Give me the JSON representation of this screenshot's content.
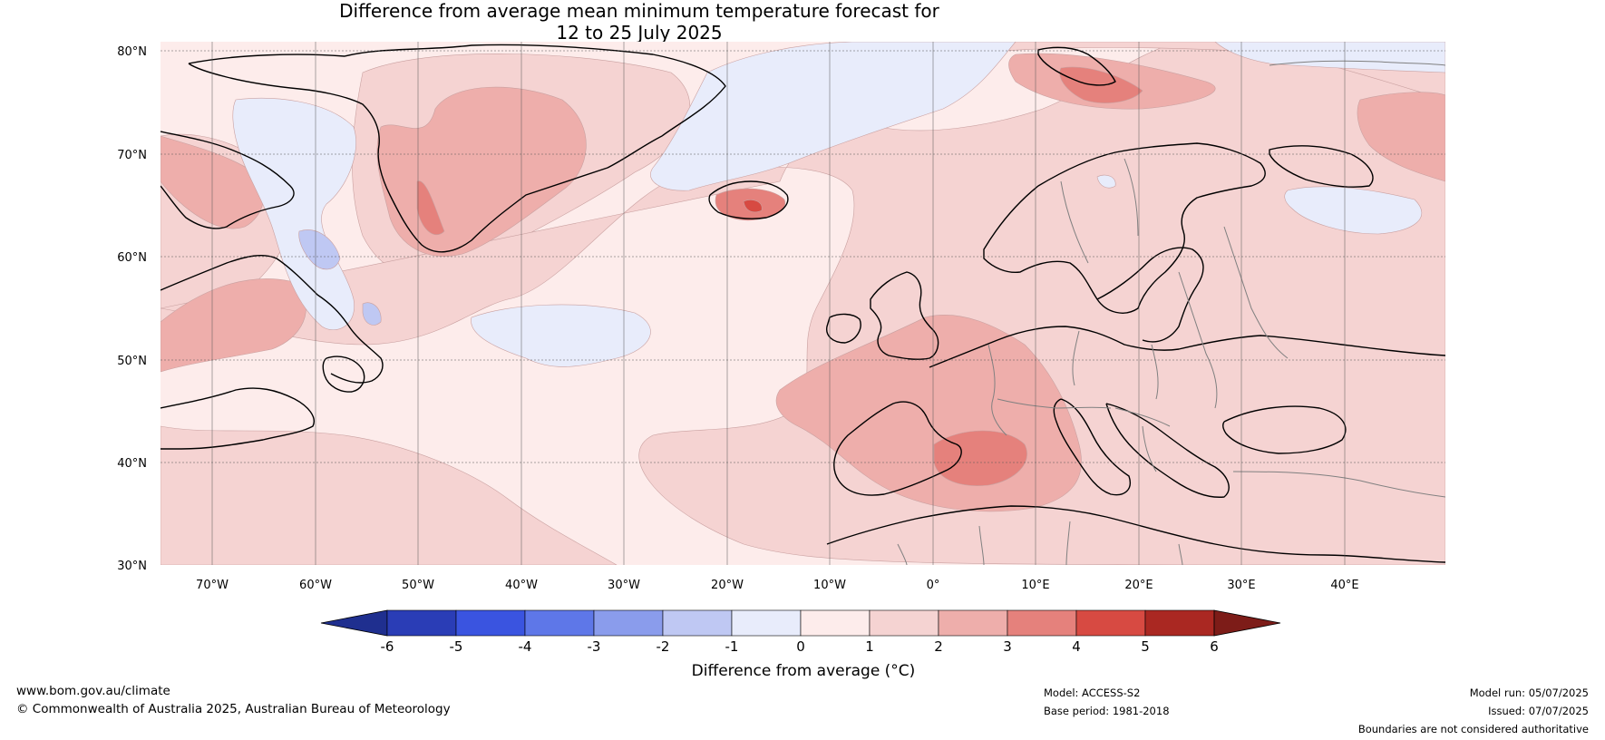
{
  "title": {
    "line1": "Difference from average mean minimum temperature forecast for",
    "line2": "12 to 25 July 2025"
  },
  "map": {
    "lat_labels": [
      "80°N",
      "70°N",
      "60°N",
      "50°N",
      "40°N",
      "30°N"
    ],
    "lon_labels": [
      "70°W",
      "60°W",
      "50°W",
      "40°W",
      "30°W",
      "20°W",
      "10°W",
      "0°",
      "10°E",
      "20°E",
      "30°E",
      "40°E"
    ],
    "colors": {
      "land_outline": "#000000",
      "border": "#808080",
      "gridline": "#555555"
    }
  },
  "colorbar": {
    "label": "Difference from average (°C)",
    "ticks": [
      "-6",
      "-5",
      "-4",
      "-3",
      "-2",
      "-1",
      "0",
      "1",
      "2",
      "3",
      "4",
      "5",
      "6"
    ],
    "colors": [
      "#1f2f8f",
      "#2a3db6",
      "#3a54e0",
      "#5e77e8",
      "#8a9cec",
      "#bfc8f3",
      "#e8ecfb",
      "#fdeceb",
      "#f5d3d2",
      "#eeaeab",
      "#e5817c",
      "#d74a42",
      "#aa2822",
      "#7d1c18"
    ]
  },
  "footer": {
    "website": "www.bom.gov.au/climate",
    "copyright": "© Commonwealth of Australia 2025, Australian Bureau of Meteorology",
    "model": "Model: ACCESS-S2",
    "base_period": "Base period: 1981-2018",
    "model_run": "Model run: 05/07/2025",
    "issued": "Issued: 07/07/2025",
    "disclaimer": "Boundaries are not considered authoritative"
  }
}
